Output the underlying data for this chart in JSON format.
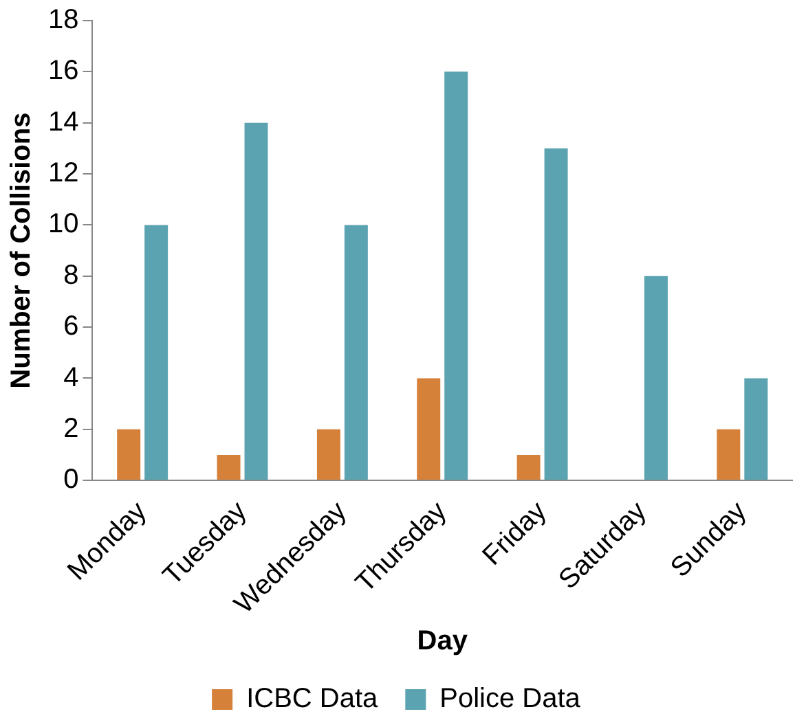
{
  "chart_data": {
    "type": "bar",
    "xlabel": "Day",
    "ylabel": "Number of Collisions",
    "categories": [
      "Monday",
      "Tuesday",
      "Wednesday",
      "Thursday",
      "Friday",
      "Saturday",
      "Sunday"
    ],
    "series": [
      {
        "name": "ICBC Data",
        "color": "#d5813a",
        "values": [
          2,
          1,
          2,
          4,
          1,
          0,
          2
        ]
      },
      {
        "name": "Police Data",
        "color": "#5ba3b0",
        "values": [
          10,
          14,
          10,
          16,
          13,
          8,
          4
        ]
      }
    ],
    "ylim": [
      0,
      18
    ],
    "yticks": [
      0,
      2,
      4,
      6,
      8,
      10,
      12,
      14,
      16,
      18
    ],
    "grid": false,
    "legend": "bottom"
  }
}
